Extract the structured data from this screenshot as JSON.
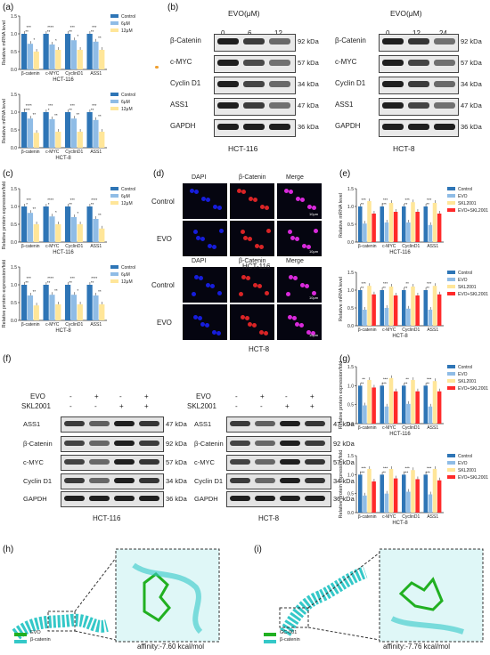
{
  "panels": {
    "a": {
      "label": "(a)"
    },
    "b": {
      "label": "(b)"
    },
    "c": {
      "label": "(c)"
    },
    "d": {
      "label": "(d)"
    },
    "e": {
      "label": "(e)"
    },
    "f": {
      "label": "(f)"
    },
    "g": {
      "label": "(g)"
    },
    "h": {
      "label": "(h)"
    },
    "i": {
      "label": "(i)"
    }
  },
  "colors": {
    "control": "#2e75b6",
    "low": "#8fbce6",
    "high": "#ffe699",
    "skl": "#ff2a2a",
    "cyan": "#34c8c8",
    "green": "#21b021"
  },
  "chart_data": [
    {
      "id": "a_top",
      "type": "bar",
      "ylabel": "Relative mRNA level",
      "xlabel": "HCT-116",
      "categories": [
        "β-catenin",
        "c-MYC",
        "CyclinD1",
        "ASS1"
      ],
      "ylim": [
        0,
        1.5
      ],
      "yticks": [
        "0.0",
        "0.5",
        "1.0",
        "1.5"
      ],
      "series": [
        {
          "name": "Control",
          "values": [
            1.0,
            1.0,
            1.0,
            1.0
          ]
        },
        {
          "name": "6μM",
          "values": [
            0.72,
            0.7,
            0.82,
            0.78
          ]
        },
        {
          "name": "12μM",
          "values": [
            0.5,
            0.55,
            0.55,
            0.55
          ]
        }
      ],
      "sig": [
        "***",
        "****",
        "***",
        "***"
      ],
      "sig2": [
        "**",
        "**",
        "**",
        "**"
      ],
      "sig3": [
        "*",
        "*",
        "*",
        "**"
      ]
    },
    {
      "id": "a_bottom",
      "type": "bar",
      "ylabel": "Relative mRNA level",
      "xlabel": "HCT-8",
      "categories": [
        "β-catenin",
        "c-MYC",
        "CyclinD1",
        "ASS1"
      ],
      "ylim": [
        0,
        1.5
      ],
      "yticks": [
        "0.0",
        "0.5",
        "1.0",
        "1.5"
      ],
      "series": [
        {
          "name": "Control",
          "values": [
            1.0,
            1.0,
            1.0,
            1.0
          ]
        },
        {
          "name": "6μM",
          "values": [
            0.82,
            0.8,
            0.82,
            0.78
          ]
        },
        {
          "name": "12μM",
          "values": [
            0.42,
            0.45,
            0.45,
            0.45
          ]
        }
      ],
      "sig": [
        "****",
        "***",
        "***",
        "***"
      ],
      "sig2": [
        "****",
        "*",
        "**",
        "**"
      ],
      "sig3": [
        "**",
        "**",
        "**",
        "**"
      ]
    },
    {
      "id": "c_top",
      "type": "bar",
      "ylabel": "Relative protein expression/fold",
      "xlabel": "HCT-116",
      "categories": [
        "β-catenin",
        "c-MYC",
        "CyclinD1",
        "ASS1"
      ],
      "ylim": [
        0,
        1.5
      ],
      "yticks": [
        "0.0",
        "0.5",
        "1.0",
        "1.5"
      ],
      "series": [
        {
          "name": "Control",
          "values": [
            1.0,
            1.0,
            1.0,
            1.0
          ]
        },
        {
          "name": "6μM",
          "values": [
            0.82,
            0.72,
            0.7,
            0.65
          ]
        },
        {
          "name": "12μM",
          "values": [
            0.5,
            0.5,
            0.5,
            0.38
          ]
        }
      ],
      "sig": [
        "***",
        "****",
        "***",
        "****"
      ],
      "sig2": [
        "*",
        "*",
        "**",
        "**"
      ],
      "sig3": [
        "**",
        "*",
        "*",
        "**"
      ]
    },
    {
      "id": "c_bottom",
      "type": "bar",
      "ylabel": "Relative protein expression/fold",
      "xlabel": "HCT-8",
      "categories": [
        "β-catenin",
        "c-MYC",
        "CyclinD1",
        "ASS1"
      ],
      "ylim": [
        0,
        1.5
      ],
      "yticks": [
        "0.0",
        "0.5",
        "1.0",
        "1.5"
      ],
      "series": [
        {
          "name": "Control",
          "values": [
            1.0,
            1.0,
            1.0,
            1.0
          ]
        },
        {
          "name": "6μM",
          "values": [
            0.7,
            0.72,
            0.72,
            0.7
          ]
        },
        {
          "name": "12μM",
          "values": [
            0.42,
            0.45,
            0.45,
            0.45
          ]
        }
      ],
      "sig": [
        "***",
        "****",
        "***",
        "****"
      ],
      "sig2": [
        "**",
        "**",
        "**",
        "**"
      ],
      "sig3": [
        "**",
        "**",
        "*",
        "**"
      ]
    },
    {
      "id": "e_top",
      "type": "bar",
      "ylabel": "Relative mRNA level",
      "xlabel": "HCT-116",
      "categories": [
        "β-catenin",
        "c-MYC",
        "CyclinD1",
        "ASS1"
      ],
      "ylim": [
        0,
        1.5
      ],
      "yticks": [
        "0.0",
        "0.5",
        "1.0",
        "1.5"
      ],
      "series": [
        {
          "name": "Control",
          "values": [
            1.0,
            1.0,
            1.0,
            1.0
          ]
        },
        {
          "name": "EVO",
          "values": [
            0.52,
            0.55,
            0.55,
            0.48
          ]
        },
        {
          "name": "SKL2001",
          "values": [
            1.15,
            1.1,
            1.12,
            1.1
          ]
        },
        {
          "name": "EVO+SKL2001",
          "values": [
            0.8,
            0.85,
            0.85,
            0.8
          ]
        }
      ],
      "sig": [
        "***",
        "***",
        "***",
        "***"
      ],
      "sig2": [
        "**",
        "***",
        "**",
        "**"
      ]
    },
    {
      "id": "e_bottom",
      "type": "bar",
      "ylabel": "Relative mRNA level",
      "xlabel": "HCT-8",
      "categories": [
        "β-catenin",
        "c-MYC",
        "CyclinD1",
        "ASS1"
      ],
      "ylim": [
        0,
        1.5
      ],
      "yticks": [
        "0.0",
        "0.5",
        "1.0",
        "1.5"
      ],
      "series": [
        {
          "name": "Control",
          "values": [
            1.0,
            1.0,
            1.0,
            1.0
          ]
        },
        {
          "name": "EVO",
          "values": [
            0.45,
            0.5,
            0.48,
            0.45
          ]
        },
        {
          "name": "SKL2001",
          "values": [
            1.12,
            1.1,
            1.1,
            1.12
          ]
        },
        {
          "name": "EVO+SKL2001",
          "values": [
            0.88,
            0.85,
            0.85,
            0.88
          ]
        }
      ],
      "sig": [
        "***",
        "***",
        "**",
        "***"
      ],
      "sig2": [
        "**",
        "**",
        "**",
        "**"
      ]
    },
    {
      "id": "g_top",
      "type": "bar",
      "ylabel": "Relative protein expression/fold",
      "xlabel": "HCT-116",
      "categories": [
        "β-catenin",
        "c-MYC",
        "CyclinD1",
        "ASS1"
      ],
      "ylim": [
        0,
        1.5
      ],
      "yticks": [
        "0.0",
        "0.5",
        "1.0",
        "1.5"
      ],
      "series": [
        {
          "name": "Control",
          "values": [
            1.0,
            1.0,
            1.0,
            1.0
          ]
        },
        {
          "name": "EVO",
          "values": [
            0.48,
            0.45,
            0.52,
            0.45
          ]
        },
        {
          "name": "SKL2001",
          "values": [
            1.15,
            1.2,
            1.15,
            1.12
          ]
        },
        {
          "name": "EVO+SKL2001",
          "values": [
            0.95,
            0.85,
            0.85,
            0.85
          ]
        }
      ],
      "sig": [
        "**",
        "***",
        "**",
        "***"
      ],
      "sig2": [
        "**",
        "***",
        "**",
        "**"
      ]
    },
    {
      "id": "g_bottom",
      "type": "bar",
      "ylabel": "Relative protein expression/fold",
      "xlabel": "HCT-8",
      "categories": [
        "β-catenin",
        "c-MYC",
        "CyclinD1",
        "ASS1"
      ],
      "ylim": [
        0,
        1.5
      ],
      "yticks": [
        "0.0",
        "0.5",
        "1.0",
        "1.5"
      ],
      "series": [
        {
          "name": "Control",
          "values": [
            1.0,
            1.0,
            1.0,
            1.0
          ]
        },
        {
          "name": "EVO",
          "values": [
            0.45,
            0.5,
            0.55,
            0.48
          ]
        },
        {
          "name": "SKL2001",
          "values": [
            1.15,
            1.15,
            1.12,
            1.15
          ]
        },
        {
          "name": "EVO+SKL2001",
          "values": [
            0.82,
            0.9,
            0.88,
            0.85
          ]
        }
      ],
      "sig": [
        "***",
        "***",
        "***",
        "***"
      ],
      "sig2": [
        "***",
        "**",
        "***",
        "***"
      ]
    }
  ],
  "blots_b": {
    "title": "EVO(μM)",
    "left": {
      "doses": [
        "0",
        "6",
        "12"
      ],
      "cell": "HCT-116"
    },
    "right": {
      "doses": [
        "0",
        "12",
        "24"
      ],
      "cell": "HCT-8"
    },
    "rows": [
      {
        "name": "β-Catenin",
        "kda": "92 kDa"
      },
      {
        "name": "c-MYC",
        "kda": "57 kDa"
      },
      {
        "name": "Cyclin D1",
        "kda": "34 kDa"
      },
      {
        "name": "ASS1",
        "kda": "47 kDa"
      },
      {
        "name": "GAPDH",
        "kda": "36 kDa"
      }
    ]
  },
  "blots_f": {
    "evo_label": "EVO",
    "skl_label": "SKL2001",
    "evo_signs": [
      "-",
      "+",
      "-",
      "+"
    ],
    "skl_signs": [
      "-",
      "-",
      "+",
      "+"
    ],
    "left_cell": "HCT-116",
    "right_cell": "HCT-8",
    "rows": [
      {
        "name": "ASS1",
        "kda": "47 kDa"
      },
      {
        "name": "β-Catenin",
        "kda": "92 kDa"
      },
      {
        "name": "c-MYC",
        "kda": "57 kDa"
      },
      {
        "name": "Cyclin D1",
        "kda": "34 kDa"
      },
      {
        "name": "GAPDH",
        "kda": "36 kDa"
      }
    ]
  },
  "micro_d": {
    "cols": [
      "DAPI",
      "β-Catenin",
      "Merge"
    ],
    "rows": [
      "Control",
      "EVO"
    ],
    "scale": "10μm",
    "top_cell": "HCT-116",
    "bottom_cell": "HCT-8"
  },
  "docking": {
    "h": {
      "legend1": "EVO",
      "legend2": "β-catenin",
      "affinity": "affinity:-7.60 kcal/mol"
    },
    "i": {
      "legend1": "GC-001",
      "legend2": "β-catenin",
      "affinity": "affinity:-7.76 kcal/mol"
    }
  }
}
